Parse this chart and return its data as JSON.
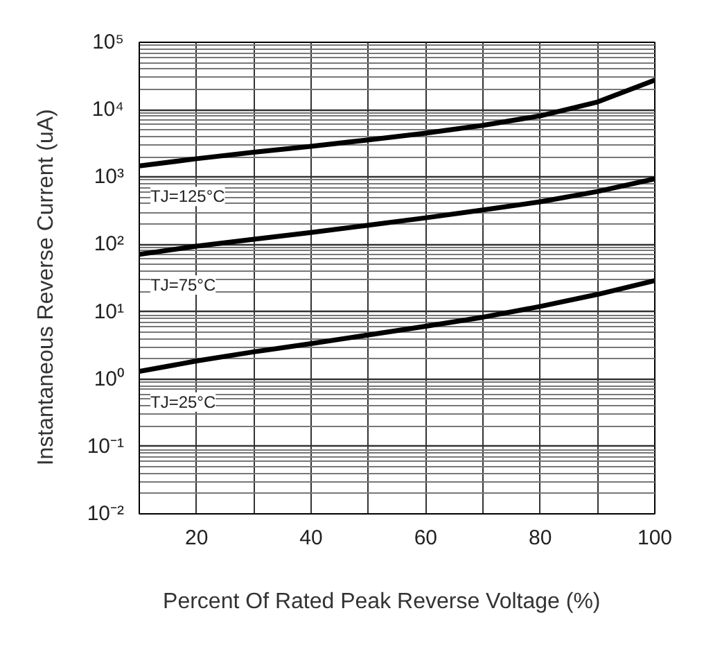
{
  "chart_data": {
    "type": "line",
    "xlabel": "Percent  Of  Rated  Peak Reverse  Voltage  (%)",
    "ylabel": "Instantaneous  Reverse  Current  (uA)",
    "x": [
      10,
      20,
      30,
      40,
      50,
      60,
      70,
      80,
      90,
      100
    ],
    "series": [
      {
        "color": "#000000",
        "values": [
          1460,
          1870,
          2330,
          2860,
          3560,
          4480,
          5860,
          8100,
          13000,
          27500
        ]
      },
      {
        "color": "#000000",
        "values": [
          71,
          94,
          119,
          150,
          193,
          248,
          324,
          429,
          610,
          940
        ]
      },
      {
        "color": "#000000",
        "values": [
          1.3,
          1.86,
          2.54,
          3.37,
          4.52,
          6.08,
          8.3,
          12,
          18.1,
          29
        ]
      }
    ],
    "annotations": [
      "TJ=125°C",
      "TJ=75°C",
      "TJ=25°C"
    ],
    "log": "y",
    "grid": true,
    "marker": "none",
    "line_style": "solid",
    "xlim": [
      10,
      100
    ],
    "xticks": [
      20,
      40,
      60,
      80,
      100
    ],
    "ylim": [
      0.01,
      100000
    ],
    "yticks": [
      {
        "value": 0.01,
        "label": "10⁻²"
      },
      {
        "value": 0.1,
        "label": "10⁻¹"
      },
      {
        "value": 1,
        "label": "10⁰"
      },
      {
        "value": 10,
        "label": "10¹"
      },
      {
        "value": 100,
        "label": "10²"
      },
      {
        "value": 1000,
        "label": "10³"
      },
      {
        "value": 10000,
        "label": "10⁴"
      },
      {
        "value": 100000,
        "label": "10⁵"
      }
    ]
  }
}
